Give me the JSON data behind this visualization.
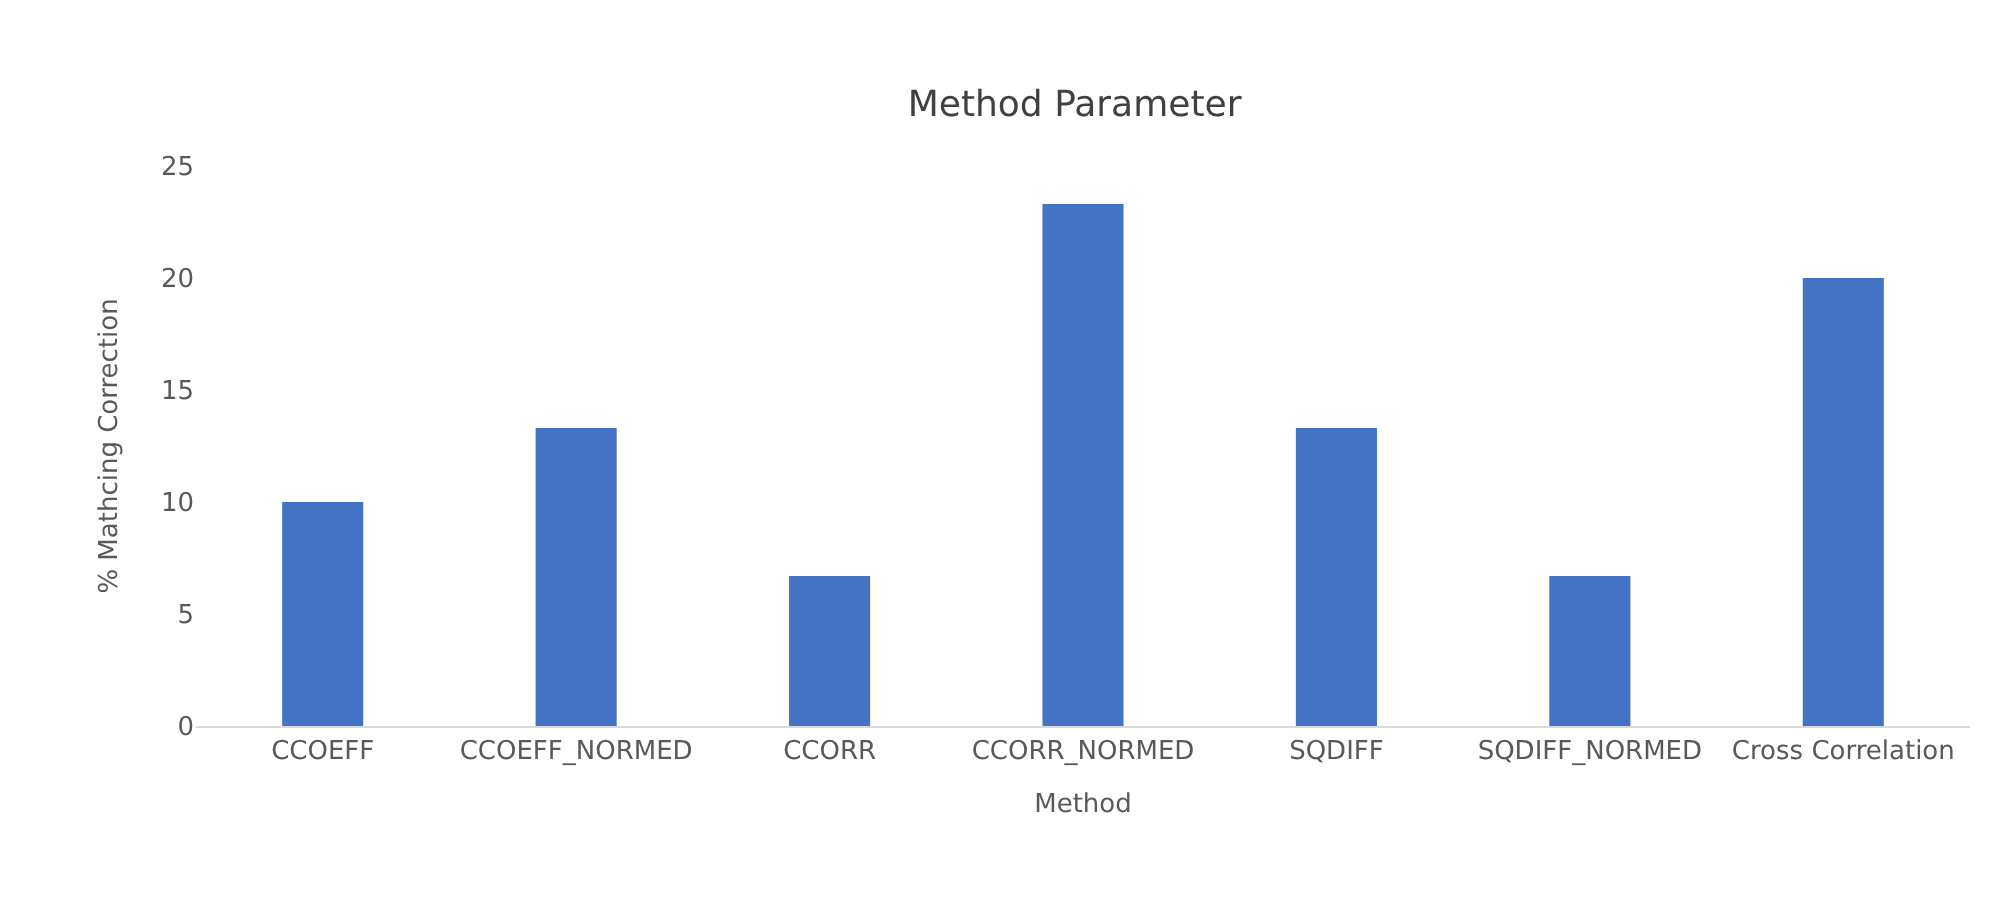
{
  "chart_data": {
    "type": "bar",
    "title": "Method Parameter",
    "xlabel": "Method",
    "ylabel": "% Mathcing Correction",
    "categories": [
      "CCOEFF",
      "CCOEFF_NORMED",
      "CCORR",
      "CCORR_NORMED",
      "SQDIFF",
      "SQDIFF_NORMED",
      "Cross Correlation"
    ],
    "values": [
      10,
      13.3,
      6.7,
      23.3,
      13.3,
      6.7,
      20
    ],
    "color": "#4472c4",
    "ylim": [
      0,
      25
    ],
    "yticks": [
      0,
      5,
      10,
      15,
      20,
      25
    ],
    "grid": false,
    "legend": false
  }
}
